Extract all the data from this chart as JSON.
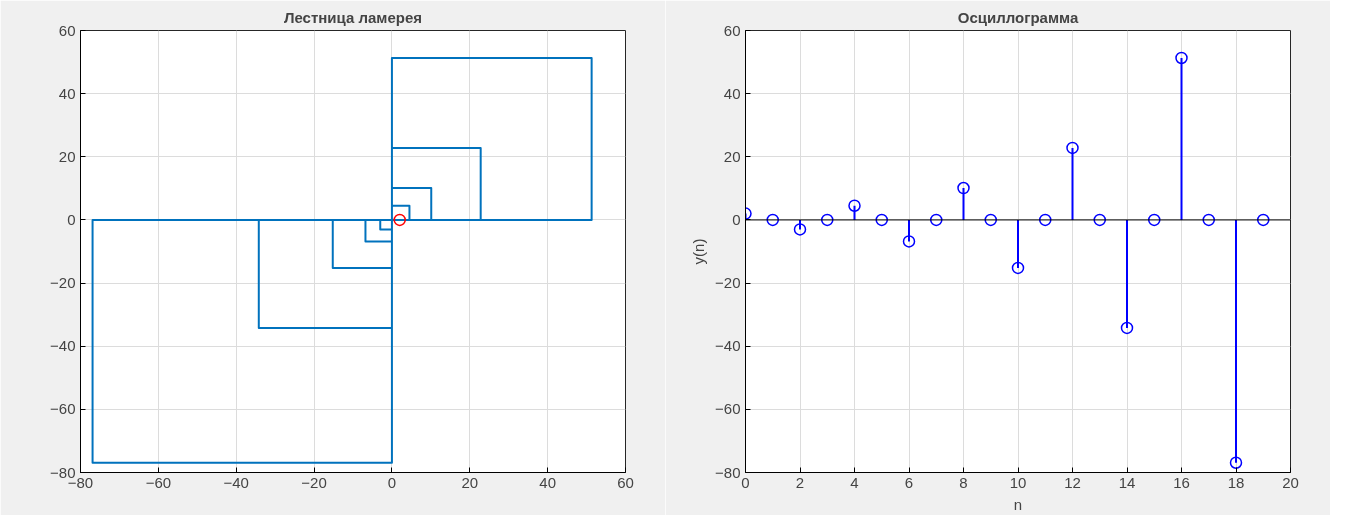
{
  "chart_data": [
    {
      "type": "line",
      "title": "Лестница ламерея",
      "xlim": [
        -80,
        60
      ],
      "ylim": [
        -80,
        60
      ],
      "xticks": [
        -80,
        -60,
        -40,
        -20,
        0,
        20,
        40,
        60
      ],
      "yticks": [
        -80,
        -60,
        -40,
        -20,
        0,
        20,
        40,
        60
      ],
      "grid": true,
      "series": [
        {
          "color": "#0072bd",
          "x": [
            2,
            -3,
            -3,
            0,
            0,
            4.5,
            4.5,
            0,
            0,
            -6.8,
            -6.8,
            0,
            0,
            10.1,
            10.1,
            0,
            0,
            -15.2,
            -15.2,
            0,
            0,
            22.8,
            22.8,
            0,
            0,
            -34.2,
            -34.2,
            0,
            0,
            51.3,
            51.3,
            0,
            0,
            -76.9,
            -76.9,
            0,
            0
          ],
          "values": [
            0,
            0,
            -3,
            -3,
            0,
            0,
            4.5,
            4.5,
            0,
            0,
            -6.8,
            -6.8,
            0,
            0,
            10.1,
            10.1,
            0,
            0,
            -15.2,
            -15.2,
            0,
            0,
            22.8,
            22.8,
            0,
            0,
            -34.2,
            -34.2,
            0,
            0,
            51.3,
            51.3,
            0,
            0,
            -76.9,
            -76.9,
            0
          ]
        },
        {
          "type": "scatter",
          "marker": "circle",
          "color": "#ff0000",
          "x": [
            2
          ],
          "values": [
            0
          ]
        }
      ]
    },
    {
      "type": "lollipop",
      "title": "Осциллограмма",
      "xlabel": "n",
      "ylabel": "y(n)",
      "xlim": [
        0,
        20
      ],
      "ylim": [
        -80,
        60
      ],
      "xticks": [
        0,
        2,
        4,
        6,
        8,
        10,
        12,
        14,
        16,
        18,
        20
      ],
      "yticks": [
        -80,
        -60,
        -40,
        -20,
        0,
        20,
        40,
        60
      ],
      "grid": true,
      "marker": "circle",
      "ref_lines": [
        {
          "axis": "y",
          "value": 0,
          "color": "#000000"
        }
      ],
      "series": [
        {
          "color": "#0000ff",
          "x": [
            0,
            1,
            2,
            3,
            4,
            5,
            6,
            7,
            8,
            9,
            10,
            11,
            12,
            13,
            14,
            15,
            16,
            17,
            18,
            19
          ],
          "values": [
            2,
            0,
            -3,
            0,
            4.5,
            0,
            -6.8,
            0,
            10.1,
            0,
            -15.2,
            0,
            22.8,
            0,
            -34.2,
            0,
            51.3,
            0,
            -76.9,
            0
          ]
        }
      ]
    }
  ]
}
